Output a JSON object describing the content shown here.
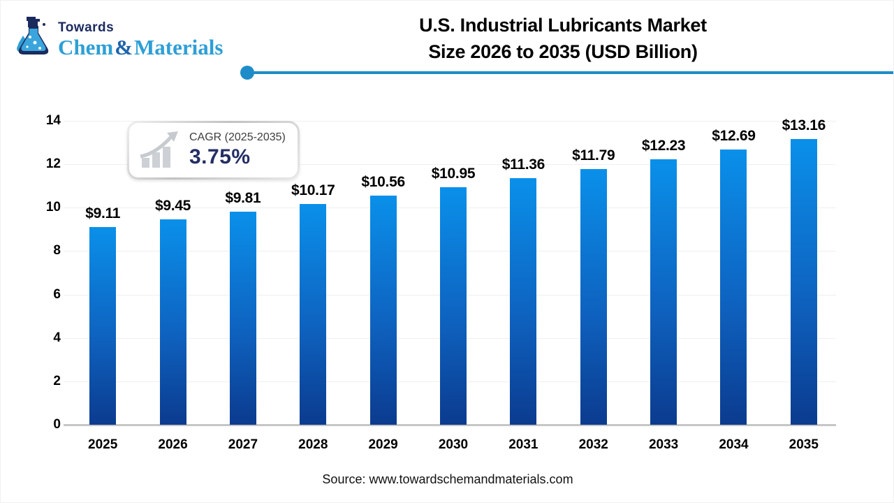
{
  "logo": {
    "towards": "Towards",
    "chem": "Chem",
    "amp": "&",
    "materials": "Materials"
  },
  "title": {
    "line1": "U.S. Industrial Lubricants Market",
    "line2": "Size 2026 to 2035 (USD Billion)"
  },
  "cagr_badge": {
    "label": "CAGR (2025-2035)",
    "value": "3.75%"
  },
  "source": "Source: www.towardschemandmaterials.com",
  "colors": {
    "bar_top": "#0a90ea",
    "bar_bottom": "#0b3b8f",
    "header_line": "#1e8cc8",
    "brand_blue": "#2d9fd6",
    "brand_navy": "#1b2a5e",
    "cagr_value_navy": "#232e63",
    "gridline": "#efefef",
    "baseline": "#c6c6c6"
  },
  "chart_data": {
    "type": "bar",
    "title": "U.S. Industrial Lubricants Market Size 2026 to 2035 (USD Billion)",
    "categories": [
      "2025",
      "2026",
      "2027",
      "2028",
      "2029",
      "2030",
      "2031",
      "2032",
      "2033",
      "2034",
      "2035"
    ],
    "values": [
      9.11,
      9.45,
      9.81,
      10.17,
      10.56,
      10.95,
      11.36,
      11.79,
      12.23,
      12.69,
      13.16
    ],
    "value_labels": [
      "$9.11",
      "$9.45",
      "$9.81",
      "$10.17",
      "$10.56",
      "$10.95",
      "$11.36",
      "$11.79",
      "$12.23",
      "$12.69",
      "$13.16"
    ],
    "xlabel": "",
    "ylabel": "",
    "ylim": [
      0,
      14
    ],
    "yticks": [
      0,
      2,
      4,
      6,
      8,
      10,
      12,
      14
    ],
    "grid": true,
    "legend": false,
    "unit": "USD Billion"
  }
}
